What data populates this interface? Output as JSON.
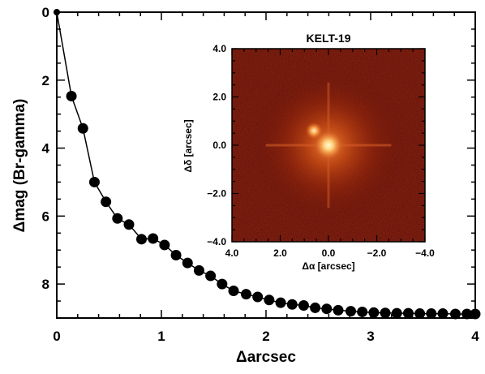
{
  "chart_data": {
    "type": "line",
    "xlabel": "Δarcsec",
    "ylabel": "Δmag (Br-gamma)",
    "xlim": [
      0,
      4
    ],
    "ylim": [
      9,
      0
    ],
    "y_inverted": true,
    "x_ticks": [
      "0",
      "1",
      "2",
      "3",
      "4"
    ],
    "y_ticks": [
      "0",
      "2",
      "4",
      "6",
      "8"
    ],
    "series": [
      {
        "marker": "filled-circle",
        "color": "#000000",
        "x": [
          0.0,
          0.14,
          0.25,
          0.36,
          0.47,
          0.58,
          0.69,
          0.81,
          0.92,
          1.03,
          1.14,
          1.25,
          1.36,
          1.47,
          1.58,
          1.69,
          1.81,
          1.92,
          2.03,
          2.14,
          2.25,
          2.36,
          2.47,
          2.58,
          2.69,
          2.81,
          2.92,
          3.03,
          3.14,
          3.25,
          3.36,
          3.47,
          3.58,
          3.69,
          3.81,
          3.92,
          4.0
        ],
        "y": [
          0.0,
          2.47,
          3.42,
          5.0,
          5.58,
          6.07,
          6.25,
          6.68,
          6.66,
          6.85,
          7.15,
          7.38,
          7.6,
          7.76,
          8.0,
          8.2,
          8.3,
          8.38,
          8.47,
          8.55,
          8.6,
          8.63,
          8.7,
          8.73,
          8.77,
          8.8,
          8.82,
          8.84,
          8.85,
          8.86,
          8.86,
          8.87,
          8.87,
          8.87,
          8.88,
          8.88,
          8.88
        ]
      }
    ],
    "inset": {
      "title": "KELT-19",
      "xlabel": "Δα [arcsec]",
      "ylabel": "Δδ [arcsec]",
      "xlim": [
        4.0,
        -4.0
      ],
      "ylim": [
        -4.0,
        4.0
      ],
      "x_ticks": [
        "4.0",
        "2.0",
        "0.0",
        "−2.0",
        "−4.0"
      ],
      "y_ticks": [
        "4.0",
        "2.0",
        "0.0",
        "−2.0",
        "−4.0"
      ],
      "image": "adaptive-optics PSF, red colormap",
      "sources": [
        {
          "x": 0.0,
          "y": 0.0,
          "relative_brightness": 1.0
        },
        {
          "x": 0.6,
          "y": 0.6,
          "relative_brightness": 0.55
        }
      ],
      "colors": {
        "background": "#5c0d05",
        "mid": "#b8300a",
        "core": "#fff2c0"
      }
    }
  }
}
